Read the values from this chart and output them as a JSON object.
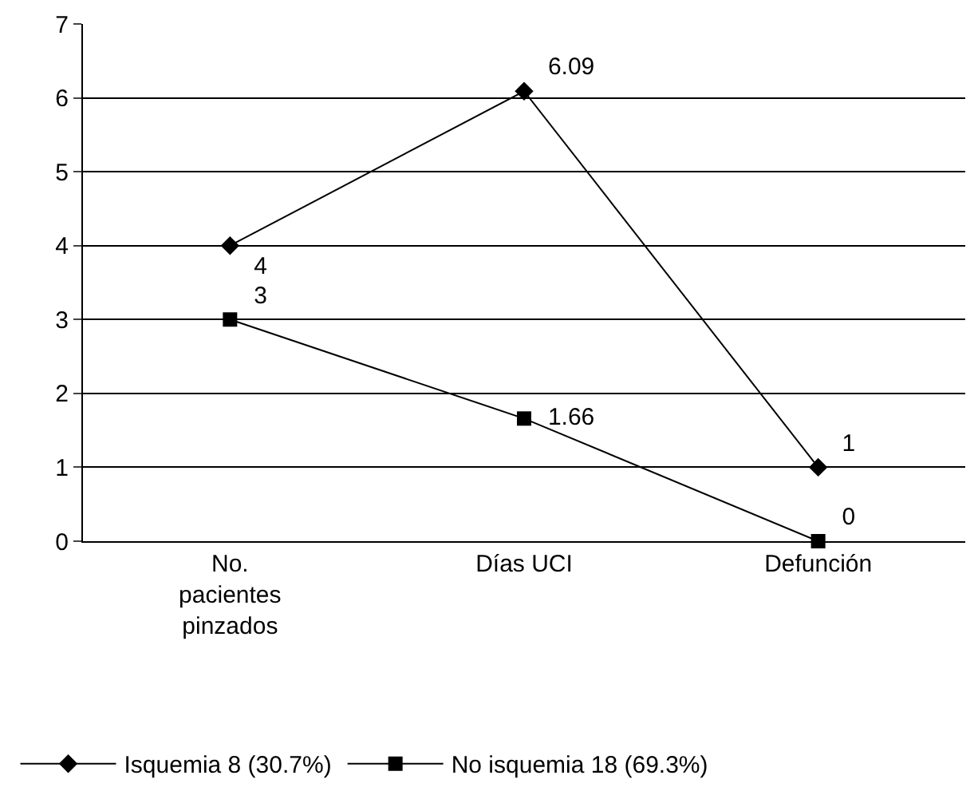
{
  "chart_data": {
    "type": "line",
    "categories": [
      "No.\npacientes\npinzados",
      "Días UCI",
      "Defunción"
    ],
    "series": [
      {
        "name": "Isquemia 8 (30.7%)",
        "color": "#000000",
        "marker": "diamond",
        "values": [
          4,
          6.09,
          1
        ]
      },
      {
        "name": "No isquemia 18 (69.3%)",
        "color": "#000000",
        "marker": "square",
        "values": [
          3,
          1.66,
          0
        ]
      }
    ],
    "ylim": [
      0,
      7
    ],
    "yticks": [
      0,
      1,
      2,
      3,
      4,
      5,
      6,
      7
    ],
    "grid": "y",
    "legend": "bottom",
    "data_labels": true,
    "line_style": "solid"
  }
}
